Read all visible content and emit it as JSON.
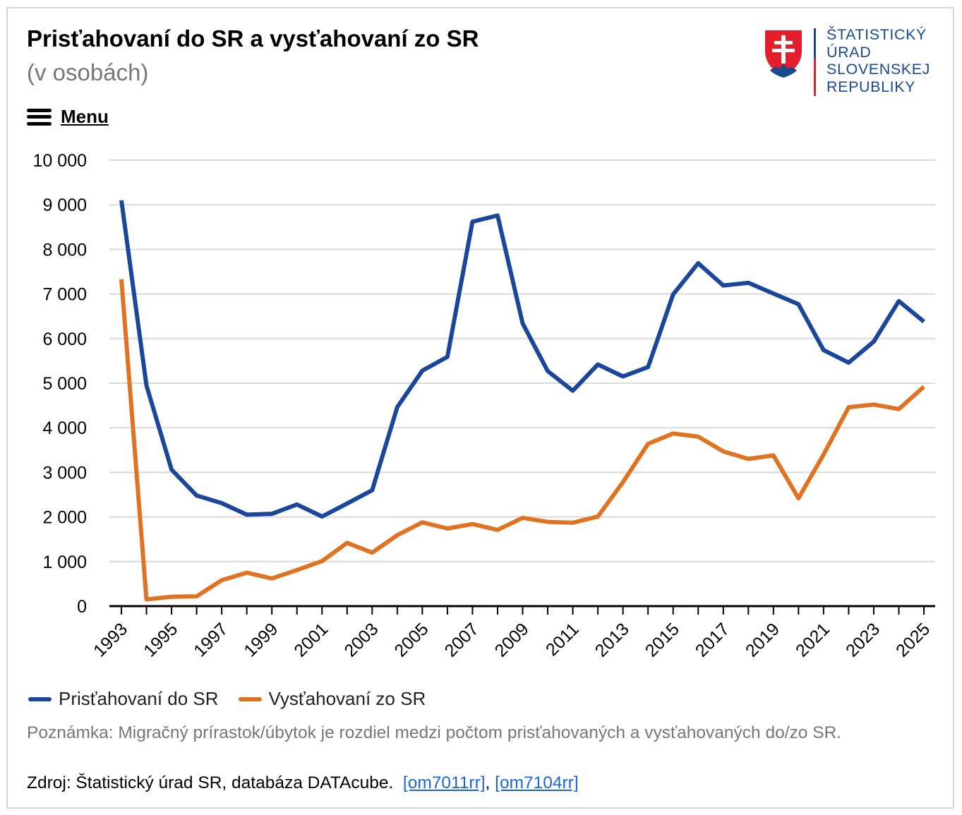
{
  "header": {
    "title": "Prisťahovaní do SR a vysťahovaní zo SR",
    "subtitle": "(v osobách)",
    "menu_label": "Menu"
  },
  "logo": {
    "lines": [
      "ŠTATISTICKÝ",
      "ÚRAD",
      "SLOVENSKEJ",
      "REPUBLIKY"
    ],
    "colors": {
      "blue": "#1a4a8e",
      "red": "#e41e2d"
    }
  },
  "chart_data": {
    "type": "line",
    "x": [
      1993,
      1994,
      1995,
      1996,
      1997,
      1998,
      1999,
      2000,
      2001,
      2002,
      2003,
      2004,
      2005,
      2006,
      2007,
      2008,
      2009,
      2010,
      2011,
      2012,
      2013,
      2014,
      2015,
      2016,
      2017,
      2018,
      2019,
      2020,
      2021,
      2022,
      2023,
      2024,
      2025
    ],
    "x_tick_labels": [
      "1993",
      "1995",
      "1997",
      "1999",
      "2001",
      "2003",
      "2005",
      "2007",
      "2009",
      "2011",
      "2013",
      "2015",
      "2017",
      "2019",
      "2021",
      "2023",
      "2025"
    ],
    "y_tick_labels": [
      "0",
      "1 000",
      "2 000",
      "3 000",
      "4 000",
      "5 000",
      "6 000",
      "7 000",
      "8 000",
      "9 000",
      "10 000"
    ],
    "ylim": [
      0,
      10000
    ],
    "grid": true,
    "legend_position": "bottom-left",
    "series": [
      {
        "name": "Prisťahovaní do SR",
        "color": "#1b479b",
        "values": [
          9100,
          4950,
          3060,
          2480,
          2310,
          2050,
          2070,
          2280,
          2010,
          2300,
          2600,
          4460,
          5280,
          5590,
          8620,
          8760,
          6340,
          5270,
          4830,
          5420,
          5150,
          5360,
          6990,
          7690,
          7190,
          7250,
          7010,
          6770,
          5740,
          5460,
          5930,
          6840,
          6380
        ]
      },
      {
        "name": "Vysťahovaní zo SR",
        "color": "#e07322",
        "values": [
          7330,
          150,
          210,
          220,
          580,
          750,
          620,
          810,
          1010,
          1420,
          1200,
          1590,
          1880,
          1740,
          1840,
          1710,
          1980,
          1890,
          1870,
          2010,
          2780,
          3640,
          3870,
          3800,
          3470,
          3300,
          3380,
          2420,
          3400,
          4460,
          4520,
          4420,
          4920
        ]
      }
    ]
  },
  "note": "Poznámka: Migračný prírastok/úbytok je rozdiel medzi počtom prisťahovaných a vysťahovaných do/zo SR.",
  "source": {
    "prefix": "Zdroj: Štatistický úrad SR, databáza DATAcube.",
    "separator": ",",
    "link1": "[om7011rr]",
    "link2": "[om7104rr]"
  }
}
